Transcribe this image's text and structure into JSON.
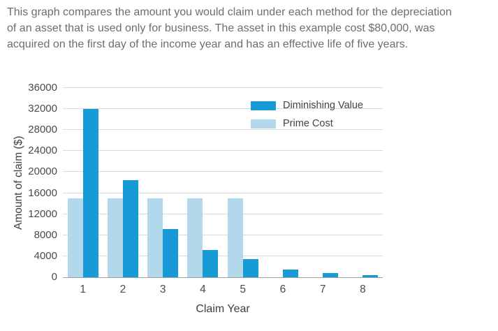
{
  "intro_text": "This graph compares the amount you would claim under each method for the depreciation of an asset that is used only for business. The asset in this example cost $80,000, was acquired on the first day of the income year and has an effective life of five years.",
  "chart_data": {
    "type": "bar",
    "title": "",
    "xlabel": "Claim Year",
    "ylabel": "Amount of claim ($)",
    "categories": [
      "1",
      "2",
      "3",
      "4",
      "5",
      "6",
      "7",
      "8"
    ],
    "series": [
      {
        "name": "Prime Cost",
        "color": "#b3d8eb",
        "values": [
          15000,
          15000,
          15000,
          15000,
          15000,
          0,
          0,
          0
        ]
      },
      {
        "name": "Diminishing Value",
        "color": "#189ad7",
        "values": [
          32000,
          18500,
          9200,
          5200,
          3400,
          1500,
          800,
          400
        ]
      }
    ],
    "legend": [
      "Diminishing Value",
      "Prime Cost"
    ],
    "legend_position": "top-right",
    "ylim": [
      0,
      36000
    ],
    "yticks": [
      0,
      4000,
      8000,
      12000,
      16000,
      20000,
      24000,
      28000,
      32000,
      36000
    ],
    "grid": true
  },
  "colors": {
    "diminishing_value": "#189ad7",
    "prime_cost": "#b3d8eb",
    "text_gray": "#6b6d70",
    "axis_text": "#4a4b4d"
  }
}
